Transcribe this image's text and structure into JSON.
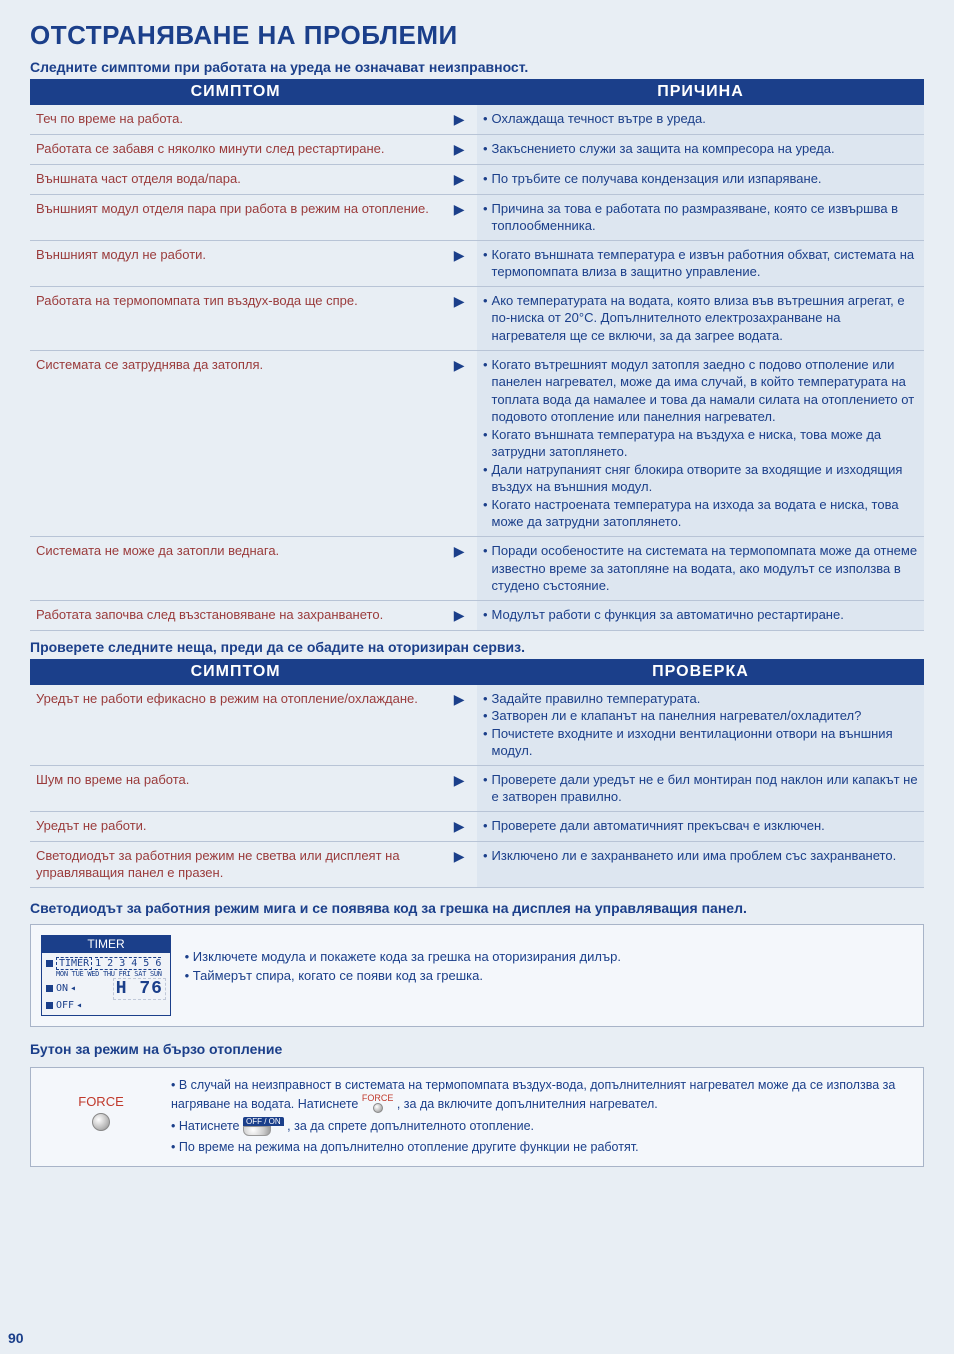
{
  "page": {
    "title": "ОТСТРАНЯВАНЕ НА ПРОБЛЕМИ",
    "subtitle1": "Следните симптоми при работата на уреда не означават неизправност.",
    "subtitle2": "Проверете следните неща, преди да се обадите на оторизиран сервиз.",
    "subtитle3": "Светодиодът за работния режим мига и се появява код за грешка на дисплея на управляващия панел.",
    "subtitle4": "Бутон за режим на бързо отопление",
    "page_number": "90"
  },
  "headers": {
    "symptom": "СИМПТОМ",
    "cause": "ПРИЧИНА",
    "check": "ПРОВЕРКА"
  },
  "colors": {
    "brand_blue": "#1b3f8a",
    "symptom_text": "#9a3b3b",
    "cause_bg": "#dde6f0",
    "page_bg": "#e8eef4",
    "box_border": "#a8b4c8"
  },
  "table1": [
    {
      "symptom": "Теч по време на работа.",
      "causes": [
        "Охлаждаща течност вътре в уреда."
      ]
    },
    {
      "symptom": "Работата се забавя с няколко минути след рестартиране.",
      "causes": [
        "Закъснението служи за защита на компресора на уреда."
      ]
    },
    {
      "symptom": "Външната част отделя вода/пара.",
      "causes": [
        "По тръбите се получава кондензация или изпаряване."
      ]
    },
    {
      "symptom": "Външният модул отделя пара при работа в режим на отопление.",
      "causes": [
        "Причина за това е работата по размразяване, която се извършва в топлообменника."
      ]
    },
    {
      "symptom": "Външният модул не работи.",
      "causes": [
        "Когато външната температура е извън работния обхват, системата на термопомпата влиза в защитно управление."
      ]
    },
    {
      "symptom": "Работата на термопомпата тип въздух-вода ще спре.",
      "causes": [
        "Ако температурата на водата, която влиза във вътрешния агрегат, е по-ниска от 20°C. Допълнителното електрозахранване на нагревателя ще се включи, за да загрее водата."
      ]
    },
    {
      "symptom": "Системата се затруднява да затопля.",
      "causes": [
        "Когато вътрешният модул затопля заедно с подово отполение или панелен нагревател, може да има случай, в който температурата на топлата вода да намалее и това да намали силата на отоплението от подовото отопление или панелния нагревател.",
        "Когато външната температура на въздуха е ниска, това може да затрудни затоплянето.",
        "Дали натрупаният сняг блокира отворите за входящие и изходящия въздух на външния модул.",
        "Когато настроената температура на изхода за водата е ниска, това може да затрудни затоплянето."
      ]
    },
    {
      "symptom": "Системата не може да затопли веднага.",
      "causes": [
        "Поради особеностите на системата на термопомпата може да отнеме известно време за затопляне на водата, ако модулът се използва в студено състояние."
      ]
    },
    {
      "symptom": "Работата започва след възстановяване на захранването.",
      "causes": [
        "Модулът работи с функция за автоматично рестартиране."
      ]
    }
  ],
  "table2": [
    {
      "symptom": "Уредът не работи ефикасно в режим на отопление/охлаждане.",
      "causes": [
        "Задайте правилно температурата.",
        "Затворен ли е клапанът на панелния нагревател/охладител?",
        "Почистете входните и изходни вентилационни отвори на външния модул."
      ]
    },
    {
      "symptom": "Шум по време на работа.",
      "causes": [
        "Проверете дали уредът не е бил монтиран под наклон или капакът не е затворен правилно."
      ]
    },
    {
      "symptom": "Уредът не работи.",
      "causes": [
        "Проверете дали автоматичният прекъсвач е изключен."
      ]
    },
    {
      "symptom": "Светодиодът за работния режим не светва или дисплеят на управляващия панел е празен.",
      "causes": [
        "Изключено ли е захранването или има проблем със захранването."
      ]
    }
  ],
  "timer": {
    "header": "TIMER",
    "badge": "TIMER",
    "nums": "1 2 3 4 5 6",
    "days": "MON TUE WED THU FRI SAT SUN",
    "on": "ON",
    "off": "OFF",
    "digits": "H 76",
    "bullets": [
      "Изключете модула и покажете кода за грешка на оторизирания дилър.",
      "Таймерът спира, когато се появи код за грешка."
    ]
  },
  "force": {
    "label": "FORCE",
    "lines": [
      "В случай на неизправност в системата на термопомпата въздух-вода, допълнителният нагревател може да се използва за нагряване на водата. Натиснете",
      ", за да включите допълнителния нагревател.",
      "Натиснете",
      ", за да спрете допълнителното отопление.",
      "По време на режима на допълнително отопление другите функции не работят."
    ],
    "inline_force": "FORCE",
    "inline_off": "OFF / ON"
  }
}
